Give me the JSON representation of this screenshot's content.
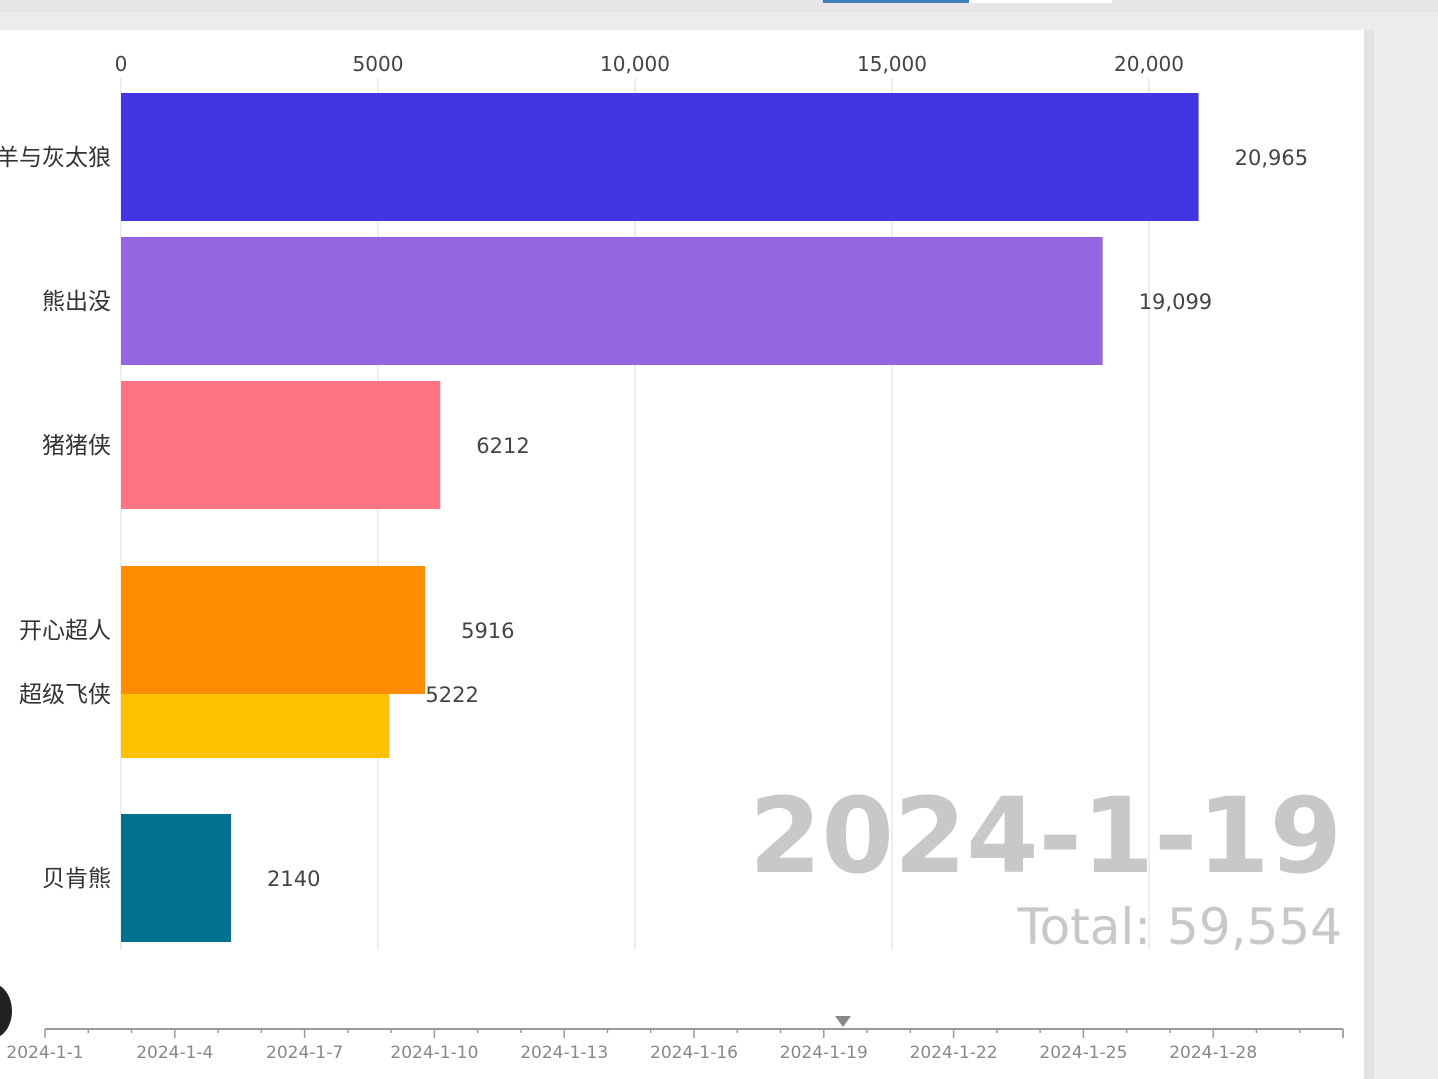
{
  "chart_data": {
    "type": "bar",
    "orientation": "horizontal",
    "categories": [
      "喜羊羊与灰太狼",
      "熊出没",
      "猪猪侠",
      "开心超人",
      "超级飞侠",
      "贝肯熊"
    ],
    "values": [
      20965,
      19099,
      6212,
      5916,
      5222,
      2140
    ],
    "value_labels": [
      "20,965",
      "19,099",
      "6212",
      "5916",
      "5222",
      "2140"
    ],
    "colors": [
      "#4335e3",
      "#9665e0",
      "#ff7383",
      "#ff8c00",
      "#ffc000",
      "#00728f"
    ],
    "xlim": [
      0,
      21000
    ],
    "x_ticks": [
      0,
      5000,
      10000,
      15000,
      20000
    ],
    "x_tick_labels": [
      "0",
      "5000",
      "10,000",
      "15,000",
      "20,000"
    ],
    "grid": true,
    "date": "2024-1-19",
    "total_label": "Total: 59,554",
    "timeline": {
      "labels": [
        "2024-1-1",
        "2024-1-4",
        "2024-1-7",
        "2024-1-10",
        "2024-1-13",
        "2024-1-16",
        "2024-1-19",
        "2024-1-22",
        "2024-1-25",
        "2024-1-28"
      ],
      "current": "2024-1-19"
    }
  }
}
